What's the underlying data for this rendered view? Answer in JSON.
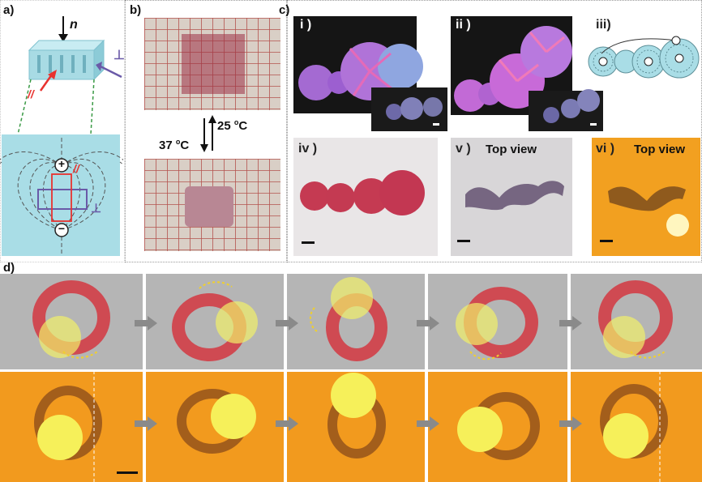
{
  "panels": {
    "a": {
      "label": "a)",
      "n_label": "n",
      "parallel_label": "//",
      "perp_label": "⊥",
      "field_parallel_label": "//",
      "field_perp_label": "⊥",
      "plus": "+",
      "minus": "−"
    },
    "b": {
      "label": "b)",
      "temp_up": "25 °C",
      "temp_down": "37 °C",
      "temp_up_num": "25 ",
      "temp_up_sup": "o",
      "temp_up_unit": "C",
      "temp_down_num": "37 ",
      "temp_down_sup": "o",
      "temp_down_unit": "C"
    },
    "c": {
      "label": "c)",
      "sub": [
        "i )",
        "ii )",
        "iii)",
        "iv )",
        "v )",
        "vi )"
      ],
      "top_view_v": "Top view",
      "top_view_vi": "Top view"
    },
    "d": {
      "label": "d)"
    }
  },
  "colors": {
    "cube_blue": "#a8dbe4",
    "field_bg": "#a9dde6",
    "arrow_red": "#e8322f",
    "arrow_purple": "#6a5aa8",
    "ribbon_red": "#cf4a52",
    "light_yellow": "#f1f06a",
    "orange_bg": "#f29a1e",
    "gray_bg": "#b3b3b3"
  }
}
